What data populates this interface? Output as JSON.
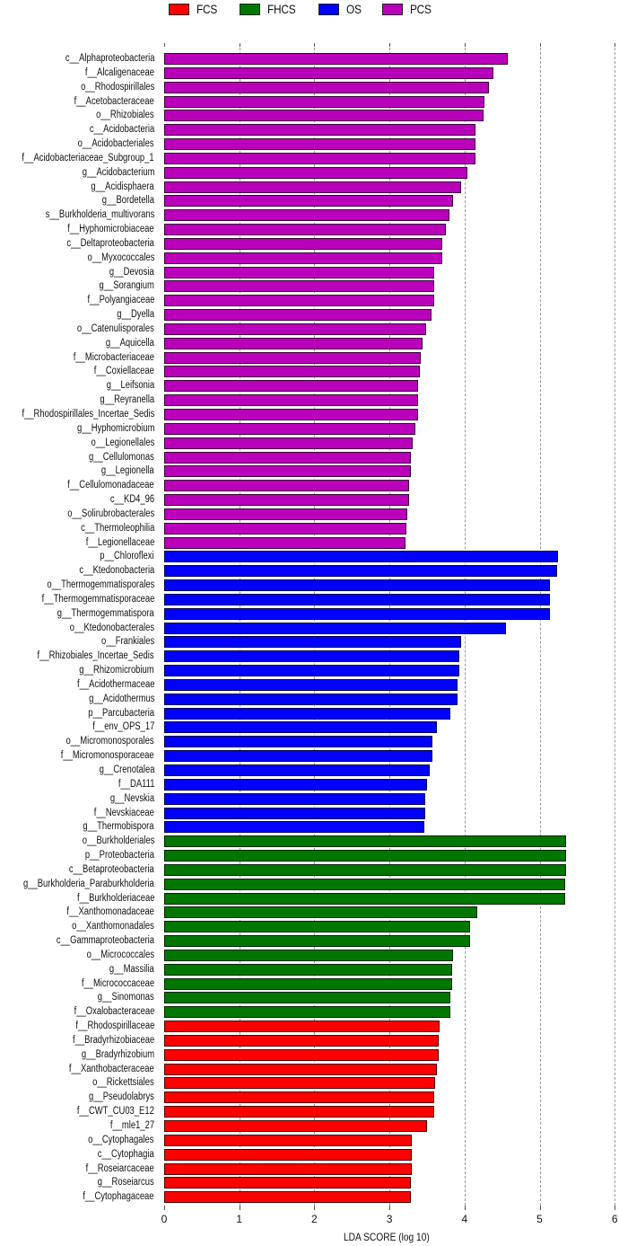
{
  "chart_data": {
    "type": "bar",
    "orientation": "horizontal",
    "title": "",
    "xlabel": "LDA SCORE (log 10)",
    "ylabel": "",
    "xlim": [
      0,
      6
    ],
    "xticks": [
      "0",
      "1",
      "2",
      "3",
      "4",
      "5",
      "6"
    ],
    "grid": "vertical dashed",
    "legend_position": "top",
    "legend": [
      {
        "name": "FCS",
        "color": "#ff0000"
      },
      {
        "name": "FHCS",
        "color": "#007700"
      },
      {
        "name": "OS",
        "color": "#0000ff"
      },
      {
        "name": "PCS",
        "color": "#bb00bb"
      }
    ],
    "bars": [
      {
        "label": "c__Alphaproteobacteria",
        "group": "PCS",
        "value": 4.58
      },
      {
        "label": "f__Alcaligenaceae",
        "group": "PCS",
        "value": 4.39
      },
      {
        "label": "o__Rhodospirillales",
        "group": "PCS",
        "value": 4.32
      },
      {
        "label": "f__Acetobacteraceae",
        "group": "PCS",
        "value": 4.26
      },
      {
        "label": "o__Rhizobiales",
        "group": "PCS",
        "value": 4.25
      },
      {
        "label": "c__Acidobacteria",
        "group": "PCS",
        "value": 4.15
      },
      {
        "label": "o__Acidobacteriales",
        "group": "PCS",
        "value": 4.15
      },
      {
        "label": "f__Acidobacteriaceae_Subgroup_1",
        "group": "PCS",
        "value": 4.15
      },
      {
        "label": "g__Acidobacterium",
        "group": "PCS",
        "value": 4.04
      },
      {
        "label": "g__Acidisphaera",
        "group": "PCS",
        "value": 3.95
      },
      {
        "label": "g__Bordetella",
        "group": "PCS",
        "value": 3.85
      },
      {
        "label": "s__Burkholderia_multivorans",
        "group": "PCS",
        "value": 3.8
      },
      {
        "label": "f__Hyphomicrobiaceae",
        "group": "PCS",
        "value": 3.75
      },
      {
        "label": "c__Deltaproteobacteria",
        "group": "PCS",
        "value": 3.7
      },
      {
        "label": "o__Myxococcales",
        "group": "PCS",
        "value": 3.7
      },
      {
        "label": "g__Devosia",
        "group": "PCS",
        "value": 3.6
      },
      {
        "label": "g__Sorangium",
        "group": "PCS",
        "value": 3.6
      },
      {
        "label": "f__Polyangiaceae",
        "group": "PCS",
        "value": 3.6
      },
      {
        "label": "g__Dyella",
        "group": "PCS",
        "value": 3.56
      },
      {
        "label": "o__Catenulisporales",
        "group": "PCS",
        "value": 3.49
      },
      {
        "label": "g__Aquicella",
        "group": "PCS",
        "value": 3.44
      },
      {
        "label": "f__Microbacteriaceae",
        "group": "PCS",
        "value": 3.42
      },
      {
        "label": "f__Coxiellaceae",
        "group": "PCS",
        "value": 3.41
      },
      {
        "label": "g__Leifsonia",
        "group": "PCS",
        "value": 3.38
      },
      {
        "label": "g__Reyranella",
        "group": "PCS",
        "value": 3.38
      },
      {
        "label": "f__Rhodospirillales_Incertae_Sedis",
        "group": "PCS",
        "value": 3.38
      },
      {
        "label": "g__Hyphomicrobium",
        "group": "PCS",
        "value": 3.35
      },
      {
        "label": "o__Legionellales",
        "group": "PCS",
        "value": 3.31
      },
      {
        "label": "g__Cellulomonas",
        "group": "PCS",
        "value": 3.29
      },
      {
        "label": "g__Legionella",
        "group": "PCS",
        "value": 3.28
      },
      {
        "label": "f__Cellulomonadaceae",
        "group": "PCS",
        "value": 3.26
      },
      {
        "label": "c__KD4_96",
        "group": "PCS",
        "value": 3.26
      },
      {
        "label": "o__Solirubrobacterales",
        "group": "PCS",
        "value": 3.24
      },
      {
        "label": "c__Thermoleophilia",
        "group": "PCS",
        "value": 3.23
      },
      {
        "label": "f__Legionellaceae",
        "group": "PCS",
        "value": 3.21
      },
      {
        "label": "p__Chloroflexi",
        "group": "OS",
        "value": 5.25
      },
      {
        "label": "c__Ktedonobacteria",
        "group": "OS",
        "value": 5.23
      },
      {
        "label": "o__Thermogemmatisporales",
        "group": "OS",
        "value": 5.14
      },
      {
        "label": "f__Thermogemmatisporaceae",
        "group": "OS",
        "value": 5.14
      },
      {
        "label": "g__Thermogemmatispora",
        "group": "OS",
        "value": 5.14
      },
      {
        "label": "o__Ktedonobacterales",
        "group": "OS",
        "value": 4.55
      },
      {
        "label": "o__Frankiales",
        "group": "OS",
        "value": 3.95
      },
      {
        "label": "f__Rhizobiales_Incertae_Sedis",
        "group": "OS",
        "value": 3.93
      },
      {
        "label": "g__Rhizomicrobium",
        "group": "OS",
        "value": 3.93
      },
      {
        "label": "f__Acidothermaceae",
        "group": "OS",
        "value": 3.91
      },
      {
        "label": "g__Acidothermus",
        "group": "OS",
        "value": 3.91
      },
      {
        "label": "p__Parcubacteria",
        "group": "OS",
        "value": 3.81
      },
      {
        "label": "f__env_OPS_17",
        "group": "OS",
        "value": 3.63
      },
      {
        "label": "o__Micromonosporales",
        "group": "OS",
        "value": 3.57
      },
      {
        "label": "f__Micromonosporaceae",
        "group": "OS",
        "value": 3.57
      },
      {
        "label": "g__Crenotalea",
        "group": "OS",
        "value": 3.54
      },
      {
        "label": "f__DA111",
        "group": "OS",
        "value": 3.5
      },
      {
        "label": "g__Nevskia",
        "group": "OS",
        "value": 3.48
      },
      {
        "label": "f__Nevskiaceae",
        "group": "OS",
        "value": 3.48
      },
      {
        "label": "g__Thermobispora",
        "group": "OS",
        "value": 3.46
      },
      {
        "label": "o__Burkholderiales",
        "group": "FHCS",
        "value": 5.35
      },
      {
        "label": "p__Proteobacteria",
        "group": "FHCS",
        "value": 5.35
      },
      {
        "label": "c__Betaproteobacteria",
        "group": "FHCS",
        "value": 5.35
      },
      {
        "label": "g__Burkholderia_Paraburkholderia",
        "group": "FHCS",
        "value": 5.34
      },
      {
        "label": "f__Burkholderiaceae",
        "group": "FHCS",
        "value": 5.34
      },
      {
        "label": "f__Xanthomonadaceae",
        "group": "FHCS",
        "value": 4.17
      },
      {
        "label": "o__Xanthomonadales",
        "group": "FHCS",
        "value": 4.08
      },
      {
        "label": "c__Gammaproteobacteria",
        "group": "FHCS",
        "value": 4.08
      },
      {
        "label": "o__Micrococcales",
        "group": "FHCS",
        "value": 3.85
      },
      {
        "label": "g__Massilia",
        "group": "FHCS",
        "value": 3.84
      },
      {
        "label": "f__Micrococcaceae",
        "group": "FHCS",
        "value": 3.83
      },
      {
        "label": "g__Sinomonas",
        "group": "FHCS",
        "value": 3.81
      },
      {
        "label": "f__Oxalobacteraceae",
        "group": "FHCS",
        "value": 3.81
      },
      {
        "label": "f__Rhodospirillaceae",
        "group": "FCS",
        "value": 3.67
      },
      {
        "label": "f__Bradyrhizobiaceae",
        "group": "FCS",
        "value": 3.65
      },
      {
        "label": "g__Bradyrhizobium",
        "group": "FCS",
        "value": 3.65
      },
      {
        "label": "f__Xanthobacteraceae",
        "group": "FCS",
        "value": 3.63
      },
      {
        "label": "o__Rickettsiales",
        "group": "FCS",
        "value": 3.61
      },
      {
        "label": "g__Pseudolabrys",
        "group": "FCS",
        "value": 3.6
      },
      {
        "label": "f__CWT_CU03_E12",
        "group": "FCS",
        "value": 3.6
      },
      {
        "label": "f__mle1_27",
        "group": "FCS",
        "value": 3.5
      },
      {
        "label": "o__Cytophagales",
        "group": "FCS",
        "value": 3.3
      },
      {
        "label": "c__Cytophagia",
        "group": "FCS",
        "value": 3.3
      },
      {
        "label": "f__Roseiarcaceae",
        "group": "FCS",
        "value": 3.3
      },
      {
        "label": "g__Roseiarcus",
        "group": "FCS",
        "value": 3.29
      },
      {
        "label": "f__Cytophagaceae",
        "group": "FCS",
        "value": 3.29
      }
    ]
  }
}
